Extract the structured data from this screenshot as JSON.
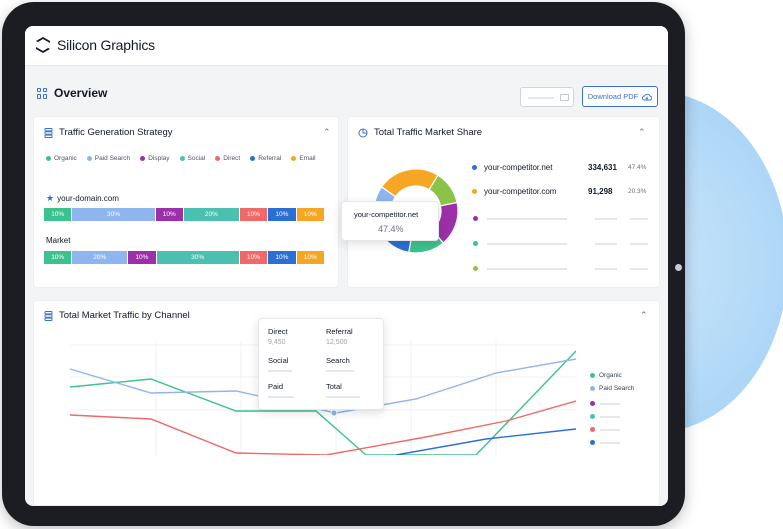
{
  "app": {
    "name": "Silicon Graphics"
  },
  "page": {
    "title": "Overview",
    "download_label": "Download PDF"
  },
  "traffic_strategy": {
    "title": "Traffic Generation Strategy",
    "legend": [
      {
        "label": "Organic",
        "color": "#3cc28c"
      },
      {
        "label": "Paid Search",
        "color": "#8fb5ee"
      },
      {
        "label": "Display",
        "color": "#9b30a8"
      },
      {
        "label": "Social",
        "color": "#4bbfb0"
      },
      {
        "label": "Direct",
        "color": "#f06868"
      },
      {
        "label": "Referral",
        "color": "#2c6fd4"
      },
      {
        "label": "Email",
        "color": "#f5a623"
      }
    ],
    "rows": [
      {
        "label": "your-domain.com",
        "segments": [
          "10%",
          "30%",
          "10%",
          "20%",
          "10%",
          "10%",
          "10%"
        ]
      },
      {
        "label": "Market",
        "segments": [
          "10%",
          "20%",
          "10%",
          "30%",
          "10%",
          "10%",
          "10%"
        ]
      }
    ]
  },
  "market_share": {
    "title": "Total Traffic Market Share",
    "entries": [
      {
        "name": "your-competitor.net",
        "value": "334,631",
        "pct": "47.4%",
        "color": "#2c6fd4"
      },
      {
        "name": "your-competitor.com",
        "value": "91,298",
        "pct": "20.3%",
        "color": "#f5a623"
      }
    ],
    "placeholder_colors": [
      "#9b30a8",
      "#3cc28c",
      "#8bc34a"
    ],
    "tooltip": {
      "name": "your-competitor.net",
      "value": "47.4%"
    }
  },
  "channel_traffic": {
    "title": "Total Market Traffic by Channel",
    "legend": [
      {
        "label": "Organic",
        "color": "#3cc28c"
      },
      {
        "label": "Paid Search",
        "color": "#8fb5ee"
      }
    ],
    "placeholder_colors": [
      "#9b30a8",
      "#4bbfb0",
      "#f06868",
      "#2c6fd4"
    ],
    "tooltip": {
      "direct_label": "Direct",
      "direct_value": "9,450",
      "referral_label": "Referral",
      "referral_value": "12,500",
      "social_label": "Social",
      "search_label": "Search",
      "paid_label": "Paid",
      "total_label": "Total"
    }
  },
  "chart_data": [
    {
      "type": "bar",
      "title": "Traffic Generation Strategy",
      "categories": [
        "your-domain.com",
        "Market"
      ],
      "series": [
        {
          "name": "Organic",
          "values": [
            10,
            10
          ]
        },
        {
          "name": "Paid Search",
          "values": [
            30,
            20
          ]
        },
        {
          "name": "Display",
          "values": [
            10,
            10
          ]
        },
        {
          "name": "Social",
          "values": [
            20,
            30
          ]
        },
        {
          "name": "Direct",
          "values": [
            10,
            10
          ]
        },
        {
          "name": "Referral",
          "values": [
            10,
            10
          ]
        },
        {
          "name": "Email",
          "values": [
            10,
            10
          ]
        }
      ]
    },
    {
      "type": "pie",
      "title": "Total Traffic Market Share",
      "slices": [
        {
          "name": "your-competitor.net",
          "value": 47.4
        },
        {
          "name": "your-competitor.com",
          "value": 20.3
        }
      ]
    },
    {
      "type": "line",
      "title": "Total Market Traffic by Channel",
      "legend_position": "right",
      "grid": true
    }
  ]
}
